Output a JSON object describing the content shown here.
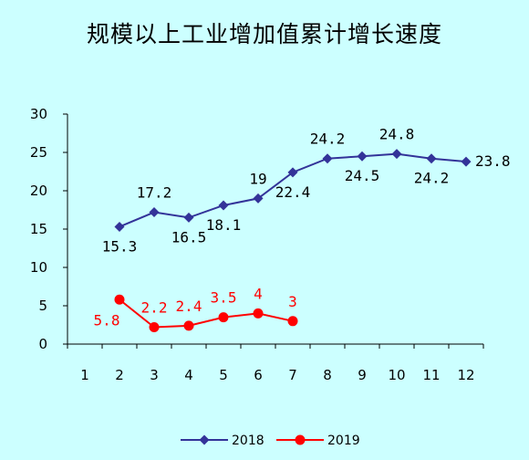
{
  "chart_data": {
    "type": "line",
    "title": "规模以上工业增加值累计增长速度",
    "categories": [
      "1",
      "2",
      "3",
      "4",
      "5",
      "6",
      "7",
      "8",
      "9",
      "10",
      "11",
      "12"
    ],
    "ylim": [
      0,
      30
    ],
    "yticks": [
      "0",
      "5",
      "10",
      "15",
      "20",
      "25",
      "30"
    ],
    "grid": false,
    "legend_position": "bottom",
    "series": [
      {
        "name": "2018",
        "color": "#333399",
        "marker": "diamond",
        "x": [
          "2",
          "3",
          "4",
          "5",
          "6",
          "7",
          "8",
          "9",
          "10",
          "11",
          "12"
        ],
        "values": [
          15.3,
          17.2,
          16.5,
          18.1,
          19,
          22.4,
          24.2,
          24.5,
          24.8,
          24.2,
          23.8
        ],
        "labels": [
          "15.3",
          "17.2",
          "16.5",
          "18.1",
          "19",
          "22.4",
          "24.2",
          "24.5",
          "24.8",
          "24.2",
          "23.8"
        ]
      },
      {
        "name": "2019",
        "color": "#FF0000",
        "marker": "circle",
        "x": [
          "2",
          "3",
          "4",
          "5",
          "6",
          "7"
        ],
        "values": [
          5.8,
          2.2,
          2.4,
          3.5,
          4,
          3
        ],
        "labels": [
          "5.8",
          "2.2",
          "2.4",
          "3.5",
          "4",
          "3"
        ]
      }
    ]
  }
}
